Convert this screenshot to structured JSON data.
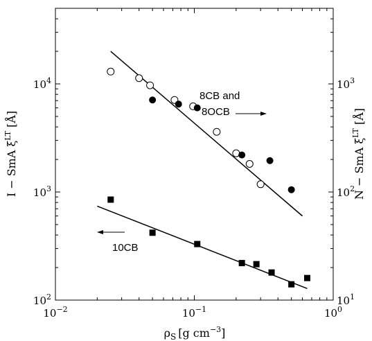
{
  "chart_data": {
    "type": "scatter",
    "xscale": "log",
    "yscale": "log",
    "xlim": [
      0.01,
      1
    ],
    "ylim_left": [
      100,
      50000
    ],
    "ylim_right": [
      10,
      5000
    ],
    "grid": false,
    "xlabel": {
      "base": "ρ",
      "sub": "S",
      "unit_pre": "[g cm",
      "unit_exp": "−3",
      "unit_post": "]"
    },
    "ylabel_left": {
      "pre": "I − SmA ξ",
      "sup": "LT",
      "post": " [Å]"
    },
    "ylabel_right": {
      "pre": "N − SmA ξ",
      "sup": "LT",
      "post": " [Å]"
    },
    "x_ticks": [
      {
        "value": 0.01,
        "base": "10",
        "exp": "−2"
      },
      {
        "value": 0.1,
        "base": "10",
        "exp": "−1"
      },
      {
        "value": 1,
        "base": "10",
        "exp": "0"
      }
    ],
    "y_left_ticks": [
      {
        "value": 100,
        "base": "10",
        "exp": "2"
      },
      {
        "value": 1000,
        "base": "10",
        "exp": "3"
      },
      {
        "value": 10000,
        "base": "10",
        "exp": "4"
      }
    ],
    "y_right_ticks": [
      {
        "value": 10,
        "base": "10",
        "exp": "1"
      },
      {
        "value": 100,
        "base": "10",
        "exp": "2"
      },
      {
        "value": 1000,
        "base": "10",
        "exp": "3"
      }
    ],
    "series": [
      {
        "axis": "right",
        "marker": "open-circle",
        "x": [
          0.025,
          0.04,
          0.048,
          0.072,
          0.098,
          0.145,
          0.2,
          0.25,
          0.3
        ],
        "y": [
          1300,
          1130,
          970,
          710,
          620,
          360,
          228,
          182,
          118
        ]
      },
      {
        "axis": "right",
        "marker": "filled-circle",
        "x": [
          0.05,
          0.077,
          0.105,
          0.22,
          0.35,
          0.5
        ],
        "y": [
          710,
          650,
          600,
          220,
          195,
          105
        ]
      },
      {
        "axis": "left",
        "marker": "filled-square",
        "x": [
          0.025,
          0.05,
          0.105,
          0.22,
          0.28,
          0.36,
          0.5,
          0.65
        ],
        "y": [
          850,
          420,
          330,
          220,
          215,
          180,
          140,
          160
        ]
      }
    ],
    "fit_lines": [
      {
        "axis": "right",
        "from": [
          0.025,
          2000
        ],
        "to": [
          0.6,
          60
        ]
      },
      {
        "axis": "left",
        "from": [
          0.02,
          740
        ],
        "to": [
          0.65,
          128
        ]
      }
    ],
    "annotations": [
      {
        "lines": [
          "8CB and",
          "8OCB"
        ],
        "arrow": "right"
      },
      {
        "lines": [
          "10CB"
        ],
        "arrow": "left"
      }
    ]
  }
}
